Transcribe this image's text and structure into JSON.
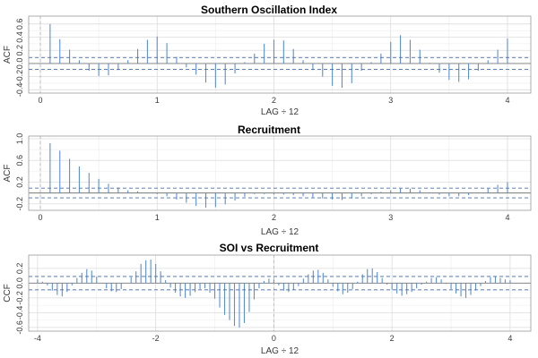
{
  "chart_data": [
    {
      "type": "bar",
      "title": "Southern Oscillation Index",
      "xlabel": "LAG ÷ 12",
      "ylabel": "ACF",
      "xlim": [
        -0.1,
        4.2
      ],
      "ylim": [
        -0.45,
        0.72
      ],
      "xticks": [
        0,
        1,
        2,
        3,
        4
      ],
      "yticks": [
        -0.4,
        -0.2,
        0.0,
        0.2,
        0.4,
        0.6
      ],
      "yticklabels": [
        "-0.4",
        "-0.2",
        "0.0",
        "0.2",
        "0.4",
        "0.6"
      ],
      "conf_band": 0.09,
      "lags": [
        0.0833,
        0.1667,
        0.25,
        0.3333,
        0.4167,
        0.5,
        0.5833,
        0.6667,
        0.75,
        0.8333,
        0.9167,
        1.0,
        1.0833,
        1.1667,
        1.25,
        1.3333,
        1.4167,
        1.5,
        1.5833,
        1.6667,
        1.75,
        1.8333,
        1.9167,
        2.0,
        2.0833,
        2.1667,
        2.25,
        2.3333,
        2.4167,
        2.5,
        2.5833,
        2.6667,
        2.75,
        2.8333,
        2.9167,
        3.0,
        3.0833,
        3.1667,
        3.25,
        3.3333,
        3.4167,
        3.5,
        3.5833,
        3.6667,
        3.75,
        3.8333,
        3.9167,
        4.0
      ],
      "values": [
        0.6,
        0.37,
        0.21,
        0.05,
        -0.11,
        -0.19,
        -0.18,
        -0.1,
        0.05,
        0.22,
        0.36,
        0.41,
        0.31,
        0.1,
        -0.06,
        -0.17,
        -0.29,
        -0.37,
        -0.32,
        -0.15,
        0.02,
        0.15,
        0.3,
        0.36,
        0.35,
        0.22,
        0.05,
        -0.1,
        -0.2,
        -0.34,
        -0.37,
        -0.3,
        -0.11,
        0.02,
        0.15,
        0.33,
        0.43,
        0.36,
        0.21,
        0.01,
        -0.14,
        -0.25,
        -0.28,
        -0.24,
        -0.11,
        0.05,
        0.21,
        0.38
      ]
    },
    {
      "type": "bar",
      "title": "Recruitment",
      "xlabel": "LAG ÷ 12",
      "ylabel": "ACF",
      "xlim": [
        -0.1,
        4.2
      ],
      "ylim": [
        -0.32,
        1.05
      ],
      "xticks": [
        0,
        1,
        2,
        3,
        4
      ],
      "yticks": [
        -0.2,
        0.2,
        0.6,
        1.0
      ],
      "yticklabels": [
        "-0.2",
        "0.2",
        "0.6",
        "1.0"
      ],
      "conf_band": 0.09,
      "lags": [
        0.0833,
        0.1667,
        0.25,
        0.3333,
        0.4167,
        0.5,
        0.5833,
        0.6667,
        0.75,
        0.8333,
        0.9167,
        1.0,
        1.0833,
        1.1667,
        1.25,
        1.3333,
        1.4167,
        1.5,
        1.5833,
        1.6667,
        1.75,
        1.8333,
        1.9167,
        2.0,
        2.0833,
        2.1667,
        2.25,
        2.3333,
        2.4167,
        2.5,
        2.5833,
        2.6667,
        2.75,
        2.8333,
        2.9167,
        3.0,
        3.0833,
        3.1667,
        3.25,
        3.3333,
        3.4167,
        3.5,
        3.5833,
        3.6667,
        3.75,
        3.8333,
        3.9167,
        4.0
      ],
      "values": [
        0.92,
        0.78,
        0.63,
        0.49,
        0.37,
        0.26,
        0.17,
        0.1,
        0.05,
        0.03,
        0.01,
        -0.02,
        -0.06,
        -0.12,
        -0.18,
        -0.24,
        -0.27,
        -0.26,
        -0.21,
        -0.14,
        -0.07,
        -0.02,
        -0.02,
        -0.03,
        -0.03,
        -0.04,
        -0.06,
        -0.08,
        -0.1,
        -0.12,
        -0.13,
        -0.1,
        -0.06,
        -0.02,
        0.02,
        0.05,
        0.08,
        0.08,
        0.05,
        0.01,
        -0.03,
        -0.06,
        -0.06,
        -0.04,
        0.01,
        0.08,
        0.15,
        0.2
      ]
    },
    {
      "type": "bar",
      "title": "SOI vs Recruitment",
      "xlabel": "LAG ÷ 12",
      "ylabel": "CCF",
      "xlim": [
        -4.15,
        4.35
      ],
      "ylim": [
        -0.65,
        0.38
      ],
      "xticks": [
        -4,
        -2,
        0,
        2,
        4
      ],
      "yticks": [
        -0.6,
        -0.4,
        -0.2,
        0.0,
        0.2
      ],
      "yticklabels": [
        "-0.6",
        "-0.4",
        "-0.2",
        "0.0",
        "0.2"
      ],
      "conf_band": 0.09,
      "lags": [
        -4.0,
        -3.9167,
        -3.8333,
        -3.75,
        -3.6667,
        -3.5833,
        -3.5,
        -3.4167,
        -3.3333,
        -3.25,
        -3.1667,
        -3.0833,
        -3.0,
        -2.9167,
        -2.8333,
        -2.75,
        -2.6667,
        -2.5833,
        -2.5,
        -2.4167,
        -2.3333,
        -2.25,
        -2.1667,
        -2.0833,
        -2.0,
        -1.9167,
        -1.8333,
        -1.75,
        -1.6667,
        -1.5833,
        -1.5,
        -1.4167,
        -1.3333,
        -1.25,
        -1.1667,
        -1.0833,
        -1.0,
        -0.9167,
        -0.8333,
        -0.75,
        -0.6667,
        -0.5833,
        -0.5,
        -0.4167,
        -0.3333,
        -0.25,
        -0.1667,
        -0.0833,
        0.0,
        0.0833,
        0.1667,
        0.25,
        0.3333,
        0.4167,
        0.5,
        0.5833,
        0.6667,
        0.75,
        0.8333,
        0.9167,
        1.0,
        1.0833,
        1.1667,
        1.25,
        1.3333,
        1.4167,
        1.5,
        1.5833,
        1.6667,
        1.75,
        1.8333,
        1.9167,
        2.0,
        2.0833,
        2.1667,
        2.25,
        2.3333,
        2.4167,
        2.5,
        2.5833,
        2.6667,
        2.75,
        2.8333,
        2.9167,
        3.0,
        3.0833,
        3.1667,
        3.25,
        3.3333,
        3.4167,
        3.5,
        3.5833,
        3.6667,
        3.75,
        3.8333,
        3.9167,
        4.0
      ],
      "values": [
        0.05,
        0.02,
        -0.03,
        -0.1,
        -0.16,
        -0.18,
        -0.12,
        -0.03,
        0.07,
        0.14,
        0.19,
        0.17,
        0.09,
        0.0,
        -0.07,
        -0.11,
        -0.12,
        -0.08,
        0.0,
        0.08,
        0.16,
        0.26,
        0.31,
        0.32,
        0.26,
        0.16,
        0.04,
        -0.06,
        -0.13,
        -0.18,
        -0.2,
        -0.17,
        -0.12,
        -0.08,
        -0.07,
        -0.13,
        -0.21,
        -0.33,
        -0.43,
        -0.5,
        -0.58,
        -0.6,
        -0.54,
        -0.39,
        -0.22,
        -0.07,
        0.03,
        0.06,
        0.05,
        -0.03,
        -0.1,
        -0.12,
        -0.09,
        -0.04,
        0.06,
        0.12,
        0.17,
        0.18,
        0.14,
        0.05,
        -0.05,
        -0.11,
        -0.15,
        -0.13,
        -0.08,
        0.02,
        0.12,
        0.19,
        0.2,
        0.15,
        0.07,
        -0.02,
        -0.09,
        -0.14,
        -0.17,
        -0.15,
        -0.12,
        -0.07,
        -0.02,
        0.02,
        0.07,
        0.08,
        0.05,
        -0.01,
        -0.08,
        -0.14,
        -0.18,
        -0.2,
        -0.16,
        -0.1,
        -0.04,
        0.03,
        0.08,
        0.09,
        0.07,
        0.05,
        0.04
      ]
    }
  ]
}
